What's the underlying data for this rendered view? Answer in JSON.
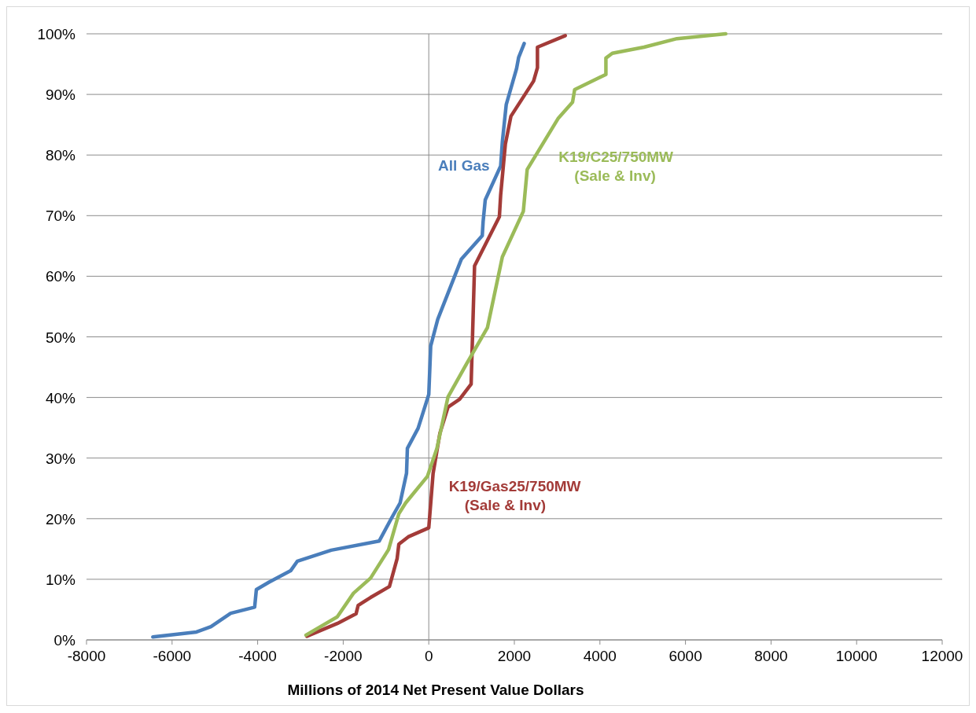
{
  "chart_data": {
    "type": "line",
    "xlabel": "Millions of 2014 Net Present Value Dollars",
    "xlim": [
      -8000,
      12000
    ],
    "xticks": [
      -8000,
      -6000,
      -4000,
      -2000,
      0,
      2000,
      4000,
      6000,
      8000,
      10000,
      12000
    ],
    "ylim": [
      0,
      100
    ],
    "yticks": [
      {
        "value": 0,
        "label": "0%"
      },
      {
        "value": 10,
        "label": "10%"
      },
      {
        "value": 20,
        "label": "20%"
      },
      {
        "value": 30,
        "label": "30%"
      },
      {
        "value": 40,
        "label": "40%"
      },
      {
        "value": 50,
        "label": "50%"
      },
      {
        "value": 60,
        "label": "60%"
      },
      {
        "value": 70,
        "label": "70%"
      },
      {
        "value": 80,
        "label": "80%"
      },
      {
        "value": 90,
        "label": "90%"
      },
      {
        "value": 100,
        "label": "100%"
      }
    ],
    "grid": "y",
    "ref_lines": [
      {
        "axis": "x",
        "value": 0,
        "color": "#8c8c8c"
      }
    ],
    "marker": "none",
    "line_style": "solid",
    "series": [
      {
        "name": "All Gas",
        "color": "#4a7ebb",
        "x": [
          -6450,
          -5430,
          -5090,
          -4630,
          -4070,
          -4030,
          -3740,
          -3230,
          -3070,
          -2280,
          -1160,
          -870,
          -670,
          -520,
          -500,
          -250,
          0,
          45,
          210,
          760,
          1250,
          1270,
          1320,
          1680,
          1720,
          1810,
          2050,
          2100,
          2230
        ],
        "values": [
          0.5,
          1.3,
          2.2,
          4.4,
          5.4,
          8.3,
          9.5,
          11.4,
          13,
          14.8,
          16.3,
          20.1,
          22.6,
          27.5,
          31.6,
          34.9,
          40.5,
          48.5,
          52.9,
          62.8,
          66.7,
          69,
          72.6,
          78.2,
          82.2,
          88.3,
          94.2,
          96.1,
          98.4
        ]
      },
      {
        "name": "K19/Gas25/750MW\n(Sale & Inv)",
        "color": "#a33b38",
        "x": [
          -2850,
          -2140,
          -1700,
          -1650,
          -1360,
          -920,
          -740,
          -700,
          -480,
          -60,
          0,
          100,
          260,
          450,
          720,
          990,
          1070,
          1650,
          1680,
          1790,
          1920,
          2450,
          2540,
          2540,
          3190
        ],
        "values": [
          0.6,
          2.7,
          4.3,
          5.7,
          7,
          8.8,
          13.4,
          15.8,
          17,
          18.3,
          18.5,
          27.4,
          34.1,
          38.4,
          39.7,
          42.2,
          61.7,
          69.8,
          73.4,
          81.8,
          86.4,
          92.2,
          94.4,
          97.8,
          99.7
        ]
      },
      {
        "name": "K19/C25/750MW\n(Sale & Inv)",
        "color": "#9bbb59",
        "x": [
          -2870,
          -2140,
          -1760,
          -1360,
          -940,
          -700,
          -540,
          -30,
          190,
          450,
          880,
          1370,
          1720,
          2210,
          2300,
          3030,
          3360,
          3410,
          4140,
          4140,
          4290,
          5030,
          5800,
          6940
        ],
        "values": [
          0.8,
          3.8,
          7.7,
          10.2,
          14.9,
          20.8,
          22.6,
          27,
          31.6,
          40.1,
          45.5,
          51.5,
          63.2,
          70.7,
          77.6,
          86.1,
          88.7,
          90.8,
          93.3,
          96,
          96.8,
          97.8,
          99.2,
          100
        ]
      }
    ]
  }
}
